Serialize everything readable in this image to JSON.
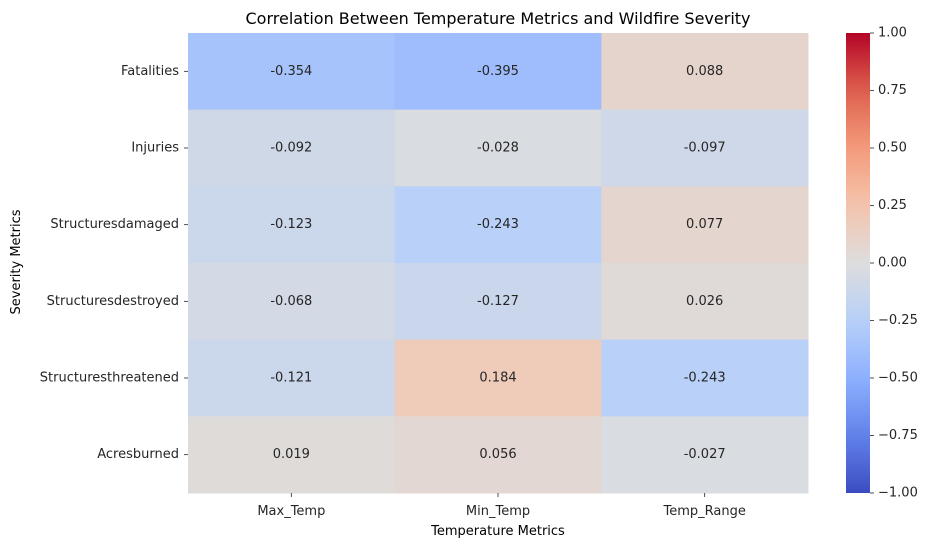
{
  "chart_data": {
    "type": "heatmap",
    "title": "Correlation Between Temperature Metrics and Wildfire Severity",
    "xlabel": "Temperature Metrics",
    "ylabel": "Severity Metrics",
    "x_categories": [
      "Max_Temp",
      "Min_Temp",
      "Temp_Range"
    ],
    "y_categories": [
      "Fatalities",
      "Injuries",
      "Structuresdamaged",
      "Structuresdestroyed",
      "Structuresthreatened",
      "Acresburned"
    ],
    "values": [
      [
        -0.354,
        -0.395,
        0.088
      ],
      [
        -0.092,
        -0.028,
        -0.097
      ],
      [
        -0.123,
        -0.243,
        0.077
      ],
      [
        -0.068,
        -0.127,
        0.026
      ],
      [
        -0.121,
        0.184,
        -0.243
      ],
      [
        0.019,
        0.056,
        -0.027
      ]
    ],
    "value_labels": [
      [
        "-0.354",
        "-0.395",
        "0.088"
      ],
      [
        "-0.092",
        "-0.028",
        "-0.097"
      ],
      [
        "-0.123",
        "-0.243",
        "0.077"
      ],
      [
        "-0.068",
        "-0.127",
        "0.026"
      ],
      [
        "-0.121",
        "0.184",
        "-0.243"
      ],
      [
        "0.019",
        "0.056",
        "-0.027"
      ]
    ],
    "colormap": "coolwarm",
    "vmin": -1.0,
    "vmax": 1.0,
    "colorbar_ticks": [
      1.0,
      0.75,
      0.5,
      0.25,
      0.0,
      -0.25,
      -0.5,
      -0.75,
      -1.0
    ],
    "colorbar_tick_labels": [
      "1.00",
      "0.75",
      "0.50",
      "0.25",
      "0.00",
      "−0.25",
      "−0.50",
      "−0.75",
      "−1.00"
    ],
    "grid": false,
    "legend": "colorbar-right"
  }
}
